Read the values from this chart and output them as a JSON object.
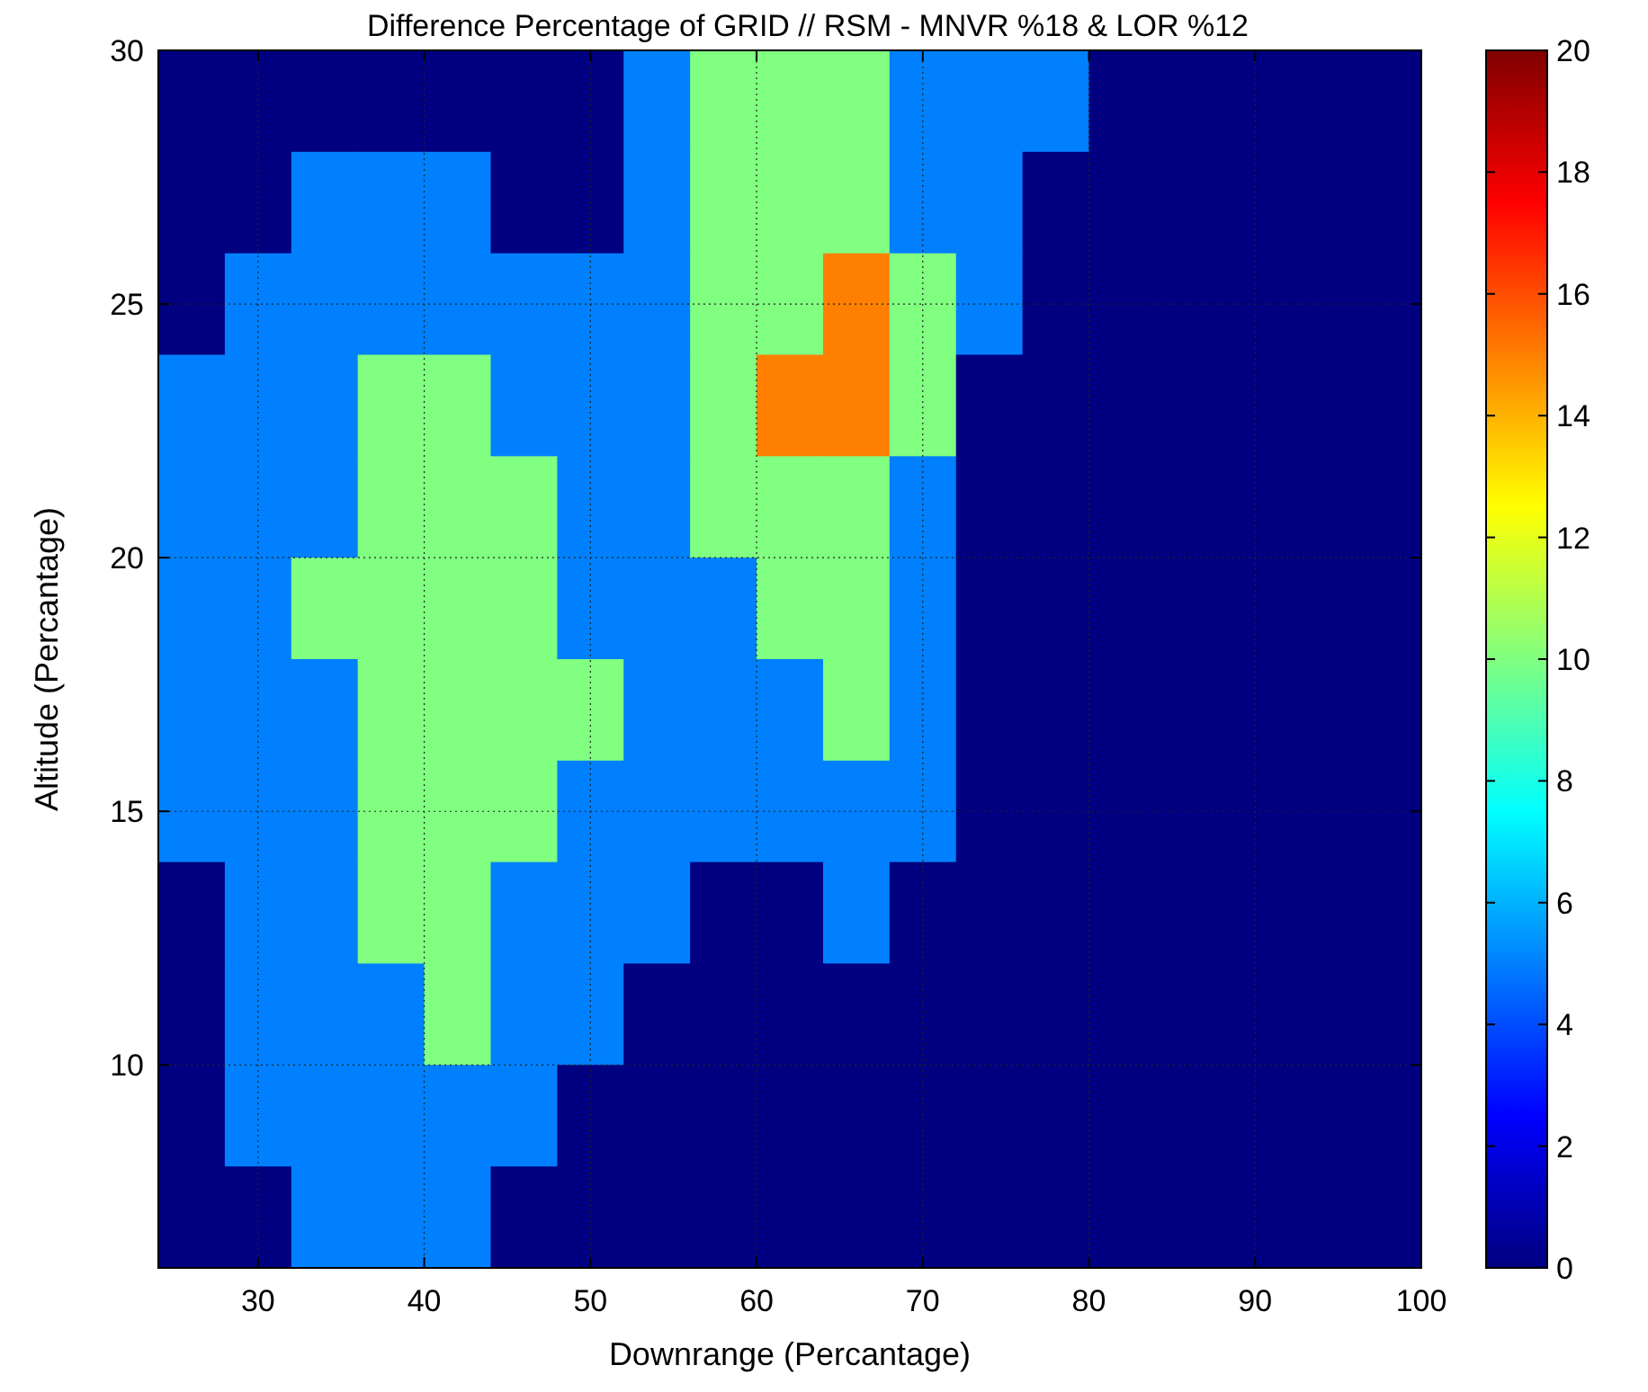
{
  "chart_data": {
    "type": "heatmap",
    "title": "Difference Percentage of GRID // RSM - MNVR %18 & LOR %12",
    "xlabel": "Downrange (Percantage)",
    "ylabel": "Altitude (Percantage)",
    "x": [
      26,
      30,
      34,
      38,
      42,
      46,
      50,
      54,
      58,
      62,
      66,
      70,
      74,
      78,
      82,
      86,
      90,
      94,
      98
    ],
    "y": [
      29,
      27,
      25,
      23,
      21,
      19,
      17,
      15,
      13,
      11,
      9,
      7
    ],
    "cells": [
      [
        0,
        0,
        0,
        0,
        0,
        0,
        0,
        5,
        10,
        10,
        10,
        5,
        5,
        5,
        0,
        0,
        0,
        0,
        0
      ],
      [
        0,
        0,
        5,
        5,
        5,
        0,
        0,
        5,
        10,
        10,
        10,
        5,
        5,
        0,
        0,
        0,
        0,
        0,
        0
      ],
      [
        0,
        5,
        5,
        5,
        5,
        5,
        5,
        5,
        10,
        10,
        15,
        10,
        5,
        0,
        0,
        0,
        0,
        0,
        0
      ],
      [
        5,
        5,
        5,
        10,
        10,
        5,
        5,
        5,
        10,
        15,
        15,
        10,
        0,
        0,
        0,
        0,
        0,
        0,
        0
      ],
      [
        5,
        5,
        5,
        10,
        10,
        10,
        5,
        5,
        10,
        10,
        10,
        5,
        0,
        0,
        0,
        0,
        0,
        0,
        0
      ],
      [
        5,
        5,
        10,
        10,
        10,
        10,
        5,
        5,
        5,
        10,
        10,
        5,
        0,
        0,
        0,
        0,
        0,
        0,
        0
      ],
      [
        5,
        5,
        5,
        10,
        10,
        10,
        10,
        5,
        5,
        5,
        10,
        5,
        0,
        0,
        0,
        0,
        0,
        0,
        0
      ],
      [
        5,
        5,
        5,
        10,
        10,
        10,
        5,
        5,
        5,
        5,
        5,
        5,
        0,
        0,
        0,
        0,
        0,
        0,
        0
      ],
      [
        0,
        5,
        5,
        10,
        10,
        5,
        5,
        5,
        0,
        0,
        5,
        0,
        0,
        0,
        0,
        0,
        0,
        0,
        0
      ],
      [
        0,
        5,
        5,
        5,
        10,
        5,
        5,
        0,
        0,
        0,
        0,
        0,
        0,
        0,
        0,
        0,
        0,
        0,
        0
      ],
      [
        0,
        5,
        5,
        5,
        5,
        5,
        0,
        0,
        0,
        0,
        0,
        0,
        0,
        0,
        0,
        0,
        0,
        0,
        0
      ],
      [
        0,
        0,
        5,
        5,
        5,
        0,
        0,
        0,
        0,
        0,
        0,
        0,
        0,
        0,
        0,
        0,
        0,
        0,
        0
      ]
    ],
    "xlim": [
      24,
      100
    ],
    "xticks": [
      30,
      40,
      50,
      60,
      70,
      80,
      90,
      100
    ],
    "ylim": [
      6,
      30
    ],
    "yticks": [
      10,
      15,
      20,
      25,
      30
    ],
    "clim": [
      0,
      20
    ],
    "cticks": [
      0,
      2,
      4,
      6,
      8,
      10,
      12,
      14,
      16,
      18,
      20
    ],
    "grid": true
  }
}
